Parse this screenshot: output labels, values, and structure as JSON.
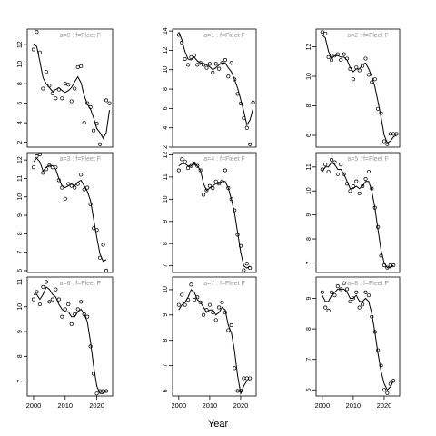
{
  "xlabel": "Year",
  "x_ticks": [
    2000,
    2010,
    2020
  ],
  "chart_data": [
    {
      "type": "scatter",
      "label": "a=0 : f=Fleet F",
      "xlim": [
        1998,
        2025
      ],
      "ylim": [
        1.5,
        13.6
      ],
      "yticks": [
        2,
        4,
        6,
        8,
        10,
        12
      ],
      "x": [
        2000,
        2001,
        2002,
        2003,
        2004,
        2005,
        2006,
        2007,
        2008,
        2009,
        2010,
        2011,
        2012,
        2013,
        2014,
        2015,
        2016,
        2017,
        2018,
        2019,
        2020,
        2021,
        2022,
        2023,
        2024
      ],
      "points": [
        11.5,
        13.3,
        11.2,
        7.5,
        9.2,
        7.8,
        7.0,
        6.5,
        7.4,
        6.5,
        8.0,
        7.9,
        6.2,
        7.5,
        9.7,
        9.8,
        4.0,
        6.0,
        5.6,
        3.2,
        3.9,
        1.8,
        2.7,
        6.3,
        6.0
      ],
      "fit": [
        12.1,
        11.8,
        10.3,
        8.6,
        8.0,
        7.6,
        7.2,
        7.4,
        7.6,
        7.3,
        7.1,
        7.3,
        7.6,
        8.2,
        8.7,
        8.1,
        6.8,
        5.9,
        5.4,
        4.5,
        3.4,
        3.0,
        2.4,
        3.0,
        5.3
      ]
    },
    {
      "type": "scatter",
      "label": "a=3 : f=Fleet F",
      "xlim": [
        1998,
        2025
      ],
      "ylim": [
        5.9,
        12.4
      ],
      "yticks": [
        6,
        7,
        8,
        9,
        10,
        11,
        12
      ],
      "x": [
        2000,
        2001,
        2002,
        2003,
        2004,
        2005,
        2006,
        2007,
        2008,
        2009,
        2010,
        2011,
        2012,
        2013,
        2014,
        2015,
        2016,
        2017,
        2018,
        2019,
        2020,
        2021,
        2022,
        2023
      ],
      "points": [
        11.6,
        12.2,
        12.3,
        11.3,
        11.5,
        11.7,
        11.6,
        11.6,
        10.9,
        10.5,
        9.9,
        10.7,
        10.6,
        10.5,
        10.7,
        11.2,
        10.4,
        10.5,
        9.6,
        8.3,
        8.2,
        6.7,
        7.4,
        6.0
      ],
      "fit": [
        11.9,
        12.1,
        11.9,
        11.4,
        11.6,
        11.7,
        11.7,
        11.5,
        11.0,
        10.6,
        10.5,
        10.6,
        10.7,
        10.6,
        10.8,
        10.9,
        10.6,
        10.3,
        9.8,
        8.8,
        7.8,
        6.9,
        6.5,
        6.6
      ]
    },
    {
      "type": "scatter",
      "label": "a=6 : f=Fleet F",
      "xlim": [
        1998,
        2025
      ],
      "ylim": [
        6.4,
        11.2
      ],
      "yticks": [
        7,
        8,
        9,
        10,
        11
      ],
      "x": [
        2000,
        2001,
        2002,
        2003,
        2004,
        2005,
        2006,
        2007,
        2008,
        2009,
        2010,
        2011,
        2012,
        2013,
        2014,
        2015,
        2016,
        2017,
        2018,
        2019,
        2020,
        2021,
        2022,
        2023
      ],
      "points": [
        10.3,
        10.6,
        10.1,
        10.8,
        11.0,
        10.2,
        10.3,
        10.7,
        10.3,
        9.6,
        9.9,
        10.1,
        9.3,
        9.7,
        9.9,
        10.2,
        9.7,
        9.6,
        8.4,
        7.3,
        6.5,
        6.6,
        6.6,
        6.6
      ],
      "fit": [
        10.5,
        10.5,
        10.3,
        10.5,
        10.8,
        10.7,
        10.5,
        10.4,
        10.1,
        9.9,
        9.8,
        9.8,
        9.6,
        9.6,
        9.8,
        9.9,
        9.7,
        9.4,
        8.6,
        7.6,
        6.8,
        6.5,
        6.5,
        6.6
      ]
    },
    {
      "type": "scatter",
      "label": "a=1 : f=Fleet F",
      "xlim": [
        1998,
        2025
      ],
      "ylim": [
        2.0,
        14.2
      ],
      "yticks": [
        2,
        4,
        6,
        8,
        10,
        12,
        14
      ],
      "x": [
        2000,
        2001,
        2002,
        2003,
        2004,
        2005,
        2006,
        2007,
        2008,
        2009,
        2010,
        2011,
        2012,
        2013,
        2014,
        2015,
        2016,
        2017,
        2018,
        2019,
        2020,
        2021,
        2022,
        2023,
        2024
      ],
      "points": [
        13.6,
        12.8,
        11.1,
        10.5,
        11.3,
        11.5,
        10.5,
        10.7,
        10.5,
        10.2,
        10.6,
        9.7,
        10.6,
        10.1,
        10.7,
        11.0,
        9.3,
        10.7,
        9.0,
        7.5,
        6.5,
        5.0,
        4.0,
        2.3,
        6.6
      ],
      "fit": [
        13.9,
        13.1,
        11.9,
        11.1,
        11.0,
        11.3,
        10.9,
        10.7,
        10.6,
        10.5,
        10.3,
        10.0,
        10.2,
        10.5,
        10.7,
        10.7,
        10.2,
        9.8,
        9.0,
        8.1,
        6.9,
        5.7,
        4.3,
        4.8,
        6.0
      ]
    },
    {
      "type": "scatter",
      "label": "a=4 : f=Fleet F",
      "xlim": [
        1998,
        2025
      ],
      "ylim": [
        6.7,
        12.1
      ],
      "yticks": [
        7,
        8,
        9,
        10,
        11,
        12
      ],
      "x": [
        2000,
        2001,
        2002,
        2003,
        2004,
        2005,
        2006,
        2007,
        2008,
        2009,
        2010,
        2011,
        2012,
        2013,
        2014,
        2015,
        2016,
        2017,
        2018,
        2019,
        2020,
        2021,
        2022,
        2023
      ],
      "points": [
        11.3,
        11.8,
        11.7,
        11.4,
        11.5,
        11.6,
        11.5,
        11.3,
        10.2,
        10.4,
        10.6,
        10.5,
        10.8,
        10.7,
        10.8,
        11.3,
        10.5,
        10.0,
        9.5,
        8.4,
        7.9,
        6.8,
        7.1,
        6.9
      ],
      "fit": [
        11.5,
        11.6,
        11.6,
        11.5,
        11.5,
        11.6,
        11.5,
        11.3,
        10.7,
        10.4,
        10.5,
        10.6,
        10.7,
        10.7,
        10.8,
        10.8,
        10.5,
        10.0,
        9.4,
        8.5,
        7.6,
        7.0,
        6.9,
        7.0
      ]
    },
    {
      "type": "scatter",
      "label": "a=7 : f=Fleet F",
      "xlim": [
        1998,
        2025
      ],
      "ylim": [
        5.8,
        10.5
      ],
      "yticks": [
        6,
        7,
        8,
        9,
        10
      ],
      "x": [
        2000,
        2001,
        2002,
        2003,
        2004,
        2005,
        2006,
        2007,
        2008,
        2009,
        2010,
        2011,
        2012,
        2013,
        2014,
        2015,
        2016,
        2017,
        2018,
        2019,
        2020,
        2021,
        2022,
        2023
      ],
      "points": [
        9.4,
        9.8,
        9.4,
        9.6,
        10.2,
        9.6,
        9.7,
        9.5,
        9.0,
        9.2,
        9.4,
        9.1,
        8.8,
        9.3,
        9.5,
        9.1,
        8.4,
        8.6,
        6.9,
        6.0,
        6.0,
        6.5,
        6.5,
        6.5
      ],
      "fit": [
        9.2,
        9.4,
        9.5,
        9.7,
        10.0,
        9.9,
        9.6,
        9.5,
        9.3,
        9.1,
        9.2,
        9.2,
        9.0,
        9.1,
        9.3,
        9.2,
        8.6,
        8.3,
        7.6,
        6.6,
        5.9,
        6.2,
        6.4,
        6.4
      ]
    },
    {
      "type": "scatter",
      "label": "a=2 : f=Fleet F",
      "xlim": [
        1998,
        2025
      ],
      "ylim": [
        5.2,
        13.2
      ],
      "yticks": [
        6,
        8,
        10,
        12
      ],
      "x": [
        2000,
        2001,
        2002,
        2003,
        2004,
        2005,
        2006,
        2007,
        2008,
        2009,
        2010,
        2011,
        2012,
        2013,
        2014,
        2015,
        2016,
        2017,
        2018,
        2019,
        2020,
        2021,
        2022,
        2023,
        2024
      ],
      "points": [
        13.0,
        12.9,
        11.3,
        11.1,
        11.4,
        11.5,
        11.1,
        11.5,
        11.2,
        10.5,
        9.8,
        10.6,
        10.4,
        10.7,
        11.2,
        10.1,
        9.6,
        9.8,
        7.8,
        7.5,
        5.6,
        5.4,
        6.1,
        6.1,
        6.1
      ],
      "fit": [
        12.8,
        12.6,
        11.7,
        11.2,
        11.4,
        11.4,
        11.3,
        11.3,
        11.1,
        10.6,
        10.3,
        10.5,
        10.5,
        10.8,
        10.9,
        10.5,
        10.0,
        9.3,
        8.3,
        7.2,
        6.0,
        5.5,
        5.6,
        5.9,
        6.0
      ]
    },
    {
      "type": "scatter",
      "label": "a=5 : f=Fleet F",
      "xlim": [
        1998,
        2025
      ],
      "ylim": [
        6.6,
        11.6
      ],
      "yticks": [
        7,
        8,
        9,
        10,
        11
      ],
      "x": [
        2000,
        2001,
        2002,
        2003,
        2004,
        2005,
        2006,
        2007,
        2008,
        2009,
        2010,
        2011,
        2012,
        2013,
        2014,
        2015,
        2016,
        2017,
        2018,
        2019,
        2020,
        2021,
        2022,
        2023
      ],
      "points": [
        10.9,
        11.1,
        10.8,
        11.3,
        11.2,
        10.7,
        11.1,
        10.7,
        10.3,
        10.0,
        10.2,
        10.4,
        9.9,
        10.2,
        10.5,
        10.8,
        10.1,
        9.3,
        8.5,
        7.3,
        6.9,
        6.8,
        6.9,
        6.9
      ],
      "fit": [
        10.8,
        11.0,
        11.0,
        11.2,
        11.1,
        10.9,
        10.9,
        10.7,
        10.4,
        10.1,
        10.1,
        10.2,
        10.1,
        10.2,
        10.4,
        10.4,
        10.0,
        9.3,
        8.4,
        7.5,
        7.0,
        6.8,
        6.8,
        6.9
      ]
    },
    {
      "type": "scatter",
      "label": "a=8 : f=Fleet F",
      "xlim": [
        1998,
        2025
      ],
      "ylim": [
        5.8,
        9.7
      ],
      "yticks": [
        6,
        7,
        8,
        9
      ],
      "x": [
        2000,
        2001,
        2002,
        2003,
        2004,
        2005,
        2006,
        2007,
        2008,
        2009,
        2010,
        2011,
        2012,
        2013,
        2014,
        2015,
        2016,
        2017,
        2018,
        2019,
        2020,
        2021,
        2022,
        2023
      ],
      "points": [
        9.2,
        8.7,
        8.6,
        9.2,
        9.1,
        9.4,
        9.3,
        9.5,
        9.3,
        8.9,
        9.0,
        9.2,
        8.7,
        8.8,
        9.2,
        9.1,
        8.4,
        7.9,
        7.3,
        6.8,
        6.0,
        5.9,
        6.2,
        6.3
      ],
      "fit": [
        9.1,
        8.9,
        8.9,
        9.1,
        9.2,
        9.3,
        9.3,
        9.3,
        9.2,
        9.0,
        9.0,
        9.1,
        8.9,
        8.9,
        9.0,
        8.9,
        8.5,
        7.9,
        7.2,
        6.6,
        6.2,
        6.0,
        6.1,
        6.3
      ]
    }
  ]
}
